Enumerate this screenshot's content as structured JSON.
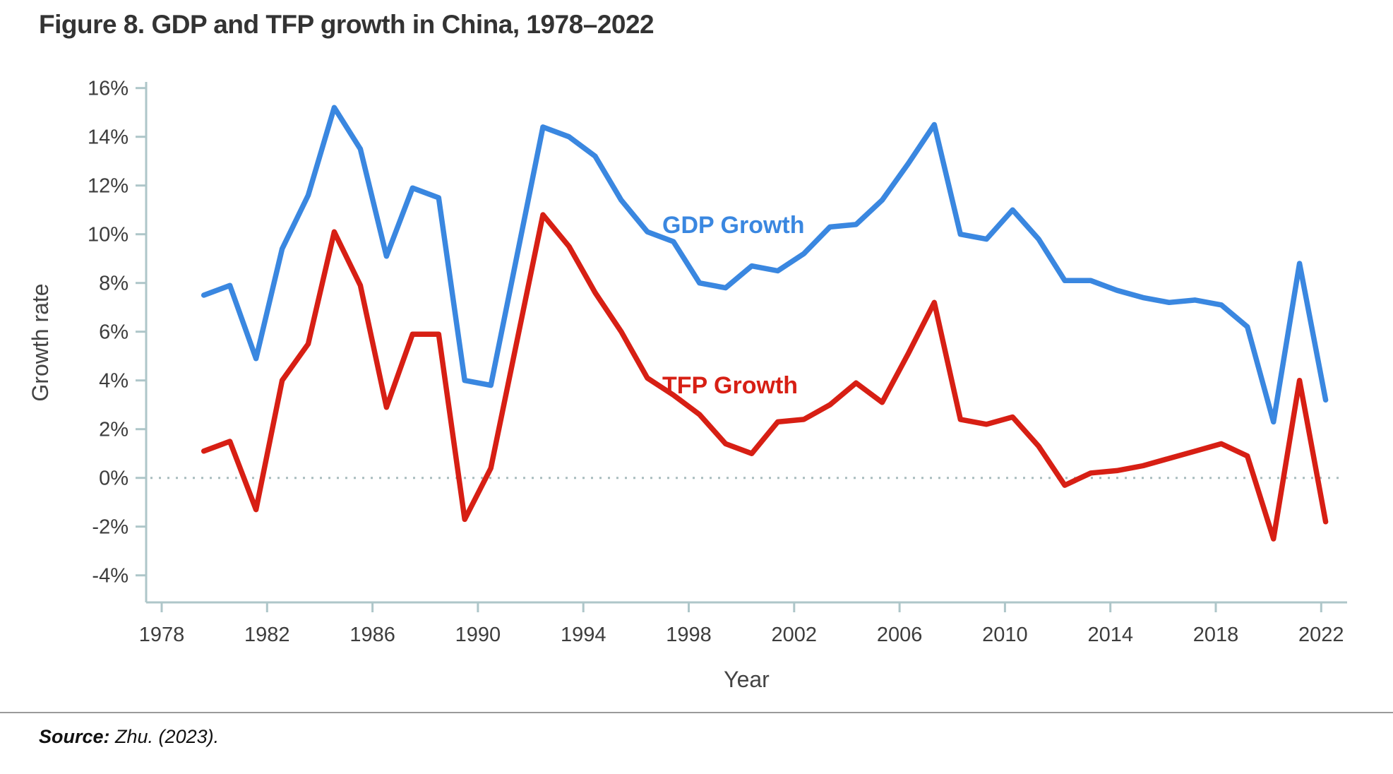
{
  "title": "Figure 8. GDP and TFP growth in China, 1978–2022",
  "source": {
    "label": "Source:",
    "text": " Zhu. (2023)."
  },
  "colors": {
    "gdp_line": "#3A87E0",
    "tfp_line": "#D71F14",
    "axis": "#AEC6C9",
    "zero_dotted_line": "#A8BCBE",
    "tick_text": "#3D3D3D",
    "axis_title_text": "#444444",
    "title_text": "#333333"
  },
  "chart_data": {
    "type": "line",
    "title": "Figure 8. GDP and TFP growth in China, 1978–2022",
    "xlabel": "Year",
    "ylabel": "Growth rate",
    "xlim": [
      1978,
      2022
    ],
    "ylim": [
      -4,
      16
    ],
    "grid": "none (dotted line at 0% only)",
    "legend": "inline labels beside lines",
    "x_tick_labels": [
      "1978",
      "1982",
      "1986",
      "1990",
      "1994",
      "1998",
      "2002",
      "2006",
      "2010",
      "2014",
      "2018",
      "2022"
    ],
    "y_tick_values": [
      16,
      14,
      12,
      10,
      8,
      6,
      4,
      2,
      0,
      -2,
      -4
    ],
    "y_tick_labels": [
      "16%",
      "14%",
      "12%",
      "10%",
      "8%",
      "6%",
      "4%",
      "2%",
      "0%",
      "-2%",
      "-4%"
    ],
    "x": [
      1979,
      1980,
      1981,
      1982,
      1983,
      1984,
      1985,
      1986,
      1987,
      1988,
      1989,
      1990,
      1991,
      1992,
      1993,
      1994,
      1995,
      1996,
      1997,
      1998,
      1999,
      2000,
      2001,
      2002,
      2003,
      2004,
      2005,
      2006,
      2007,
      2008,
      2009,
      2010,
      2011,
      2012,
      2013,
      2014,
      2015,
      2016,
      2017,
      2018,
      2019,
      2020,
      2021,
      2022
    ],
    "series": [
      {
        "name": "GDP Growth",
        "color": "#3A87E0",
        "values": [
          7.5,
          7.9,
          4.9,
          9.4,
          11.6,
          15.2,
          13.5,
          9.1,
          11.9,
          11.5,
          4.0,
          3.8,
          9.1,
          14.4,
          14.0,
          13.2,
          11.4,
          10.1,
          9.7,
          8.0,
          7.8,
          8.7,
          8.5,
          9.2,
          10.3,
          10.4,
          11.4,
          12.9,
          14.5,
          10.0,
          9.8,
          11.0,
          9.8,
          8.1,
          8.1,
          7.7,
          7.4,
          7.2,
          7.3,
          7.1,
          6.2,
          2.3,
          8.8,
          3.2
        ]
      },
      {
        "name": "TFP Growth",
        "color": "#D71F14",
        "values": [
          1.1,
          1.5,
          -1.3,
          4.0,
          5.5,
          10.1,
          7.9,
          2.9,
          5.9,
          5.9,
          -1.7,
          0.4,
          5.6,
          10.8,
          9.5,
          7.6,
          6.0,
          4.1,
          3.4,
          2.6,
          1.4,
          1.0,
          2.3,
          2.4,
          3.0,
          3.9,
          3.1,
          5.1,
          7.2,
          2.4,
          2.2,
          2.5,
          1.3,
          -0.3,
          0.2,
          0.3,
          0.5,
          0.8,
          1.1,
          1.4,
          0.9,
          -2.5,
          4.0,
          -1.8
        ]
      }
    ]
  }
}
